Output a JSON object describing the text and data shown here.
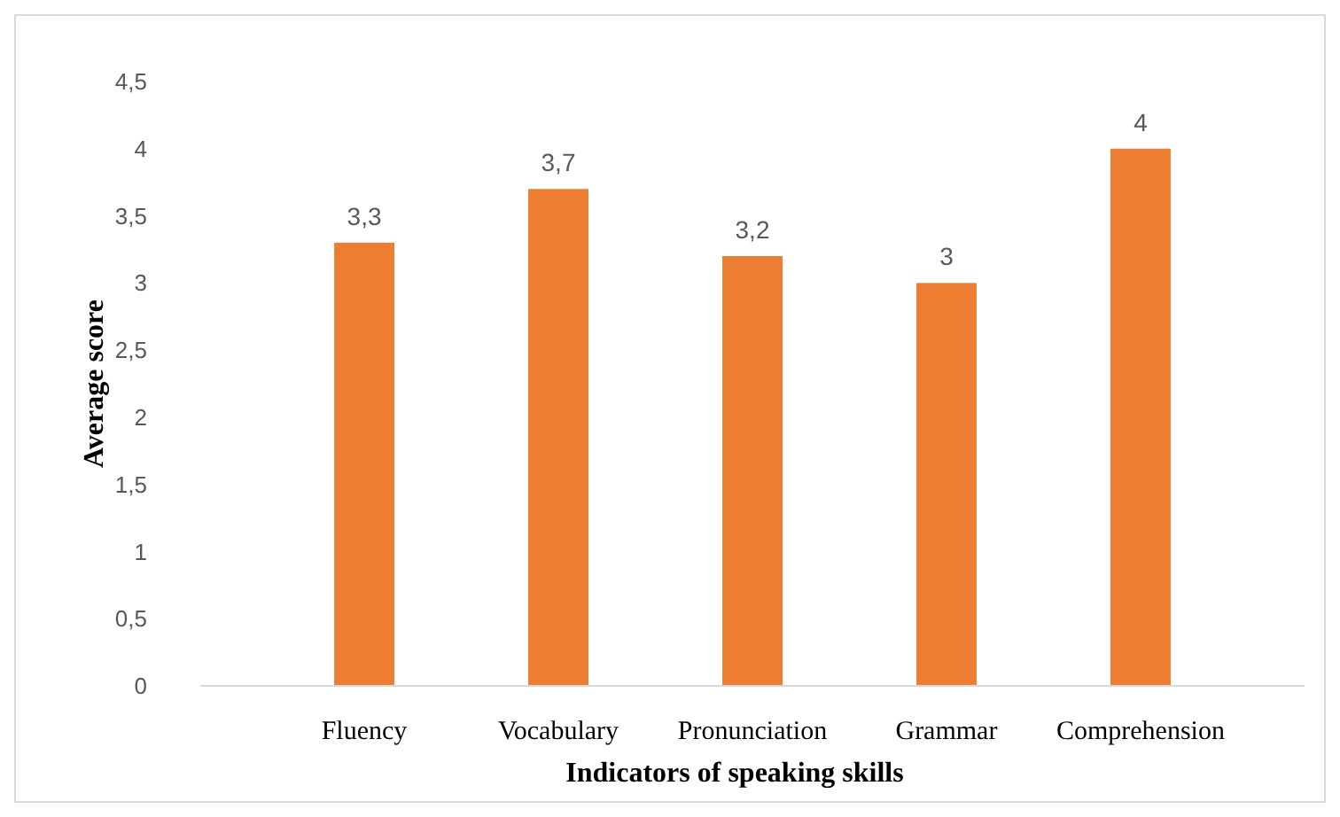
{
  "chart_data": {
    "type": "bar",
    "xlabel": "Indicators of speaking skills",
    "ylabel": "Average score",
    "categories": [
      "Fluency",
      "Vocabulary",
      "Pronunciation",
      "Grammar",
      "Comprehension"
    ],
    "values": [
      3.3,
      3.7,
      3.2,
      3,
      4
    ],
    "value_labels": [
      "3,3",
      "3,7",
      "3,2",
      "3",
      "4"
    ],
    "color": "#ed7d31",
    "ylim": [
      0,
      4.5
    ],
    "yticks": [
      0,
      {
        "value": 0.5,
        "label": "0,5"
      },
      1,
      {
        "value": 1.5,
        "label": "1,5"
      },
      2,
      {
        "value": 2.5,
        "label": "2,5"
      },
      3,
      {
        "value": 3.5,
        "label": "3,5"
      },
      4,
      {
        "value": 4.5,
        "label": "4,5"
      }
    ],
    "grid": false
  }
}
